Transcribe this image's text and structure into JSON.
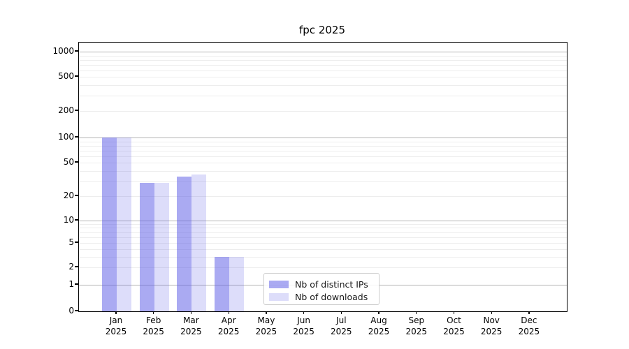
{
  "window": {
    "title": "fpc 2025"
  },
  "chart_data": {
    "type": "bar",
    "title": "fpc 2025",
    "yscale": "symlog",
    "grid": true,
    "xlabel": "",
    "ylabel": "",
    "ylim": [
      0,
      1300
    ],
    "y_ticks": [
      0,
      1,
      2,
      5,
      10,
      20,
      50,
      100,
      200,
      500,
      1000
    ],
    "categories": [
      "Jan",
      "Feb",
      "Mar",
      "Apr",
      "May",
      "Jun",
      "Jul",
      "Aug",
      "Sep",
      "Oct",
      "Nov",
      "Dec"
    ],
    "year": "2025",
    "legend_position": "lower center",
    "series": [
      {
        "name": "Nb of distinct IPs",
        "color": "rgba(85,85,230,0.5)",
        "values": [
          100,
          29,
          34,
          3,
          0,
          0,
          0,
          0,
          0,
          0,
          0,
          0
        ]
      },
      {
        "name": "Nb of downloads",
        "color": "rgba(85,85,230,0.2)",
        "values": [
          100,
          29,
          36,
          3,
          0,
          0,
          0,
          0,
          0,
          0,
          0,
          0
        ]
      }
    ]
  }
}
